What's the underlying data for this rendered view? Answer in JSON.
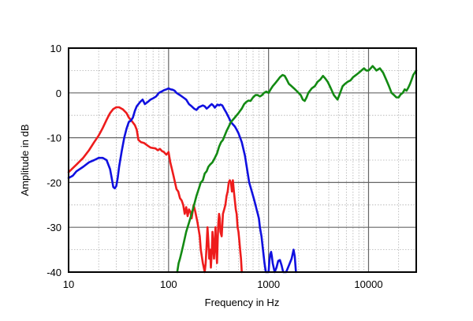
{
  "chart_data": {
    "type": "line",
    "title": "",
    "xlabel": "Frequency in Hz",
    "ylabel": "Amplitude in dB",
    "x_scale": "log",
    "xlim": [
      10,
      30000
    ],
    "ylim": [
      -40,
      10
    ],
    "x_ticks": [
      10,
      100,
      1000,
      10000
    ],
    "x_tick_labels": [
      "10",
      "100",
      "1000",
      "10000"
    ],
    "y_ticks": [
      10,
      0,
      -10,
      -20,
      -30,
      -40
    ],
    "y_tick_labels": [
      "10",
      "0",
      "-10",
      "-20",
      "-30",
      "-40"
    ],
    "grid": true,
    "legend": "none",
    "colors": {
      "red": "#ee1c1c",
      "blue": "#1010e0",
      "green": "#138a13"
    },
    "series": [
      {
        "color": "#ee1c1c",
        "points": [
          [
            10,
            -17.7
          ],
          [
            12,
            -16
          ],
          [
            14,
            -14.5
          ],
          [
            16,
            -12.8
          ],
          [
            18,
            -11
          ],
          [
            20,
            -9.5
          ],
          [
            22,
            -7.8
          ],
          [
            24,
            -6
          ],
          [
            26,
            -4.5
          ],
          [
            28,
            -3.6
          ],
          [
            30,
            -3.2
          ],
          [
            32,
            -3.2
          ],
          [
            35,
            -3.7
          ],
          [
            38,
            -4.5
          ],
          [
            40,
            -5.5
          ],
          [
            43,
            -6.3
          ],
          [
            46,
            -7.2
          ],
          [
            48,
            -8.2
          ],
          [
            50,
            -10.5
          ],
          [
            53,
            -11
          ],
          [
            57,
            -11.2
          ],
          [
            62,
            -11.8
          ],
          [
            66,
            -12.2
          ],
          [
            70,
            -12.3
          ],
          [
            74,
            -12.4
          ],
          [
            78,
            -12.8
          ],
          [
            82,
            -12.5
          ],
          [
            86,
            -13
          ],
          [
            90,
            -13.2
          ],
          [
            95,
            -13.8
          ],
          [
            100,
            -13.2
          ],
          [
            104,
            -15.5
          ],
          [
            108,
            -17
          ],
          [
            112,
            -18.5
          ],
          [
            116,
            -20
          ],
          [
            120,
            -21.5
          ],
          [
            125,
            -22
          ],
          [
            130,
            -23.5
          ],
          [
            135,
            -24
          ],
          [
            140,
            -25
          ],
          [
            145,
            -27
          ],
          [
            150,
            -25.5
          ],
          [
            155,
            -27.5
          ],
          [
            160,
            -26
          ],
          [
            165,
            -26.5
          ],
          [
            170,
            -28
          ],
          [
            178,
            -25
          ],
          [
            185,
            -26.5
          ],
          [
            195,
            -29
          ],
          [
            205,
            -32
          ],
          [
            210,
            -35
          ],
          [
            220,
            -38
          ],
          [
            230,
            -40
          ],
          [
            235,
            -38
          ],
          [
            240,
            -34
          ],
          [
            245,
            -30
          ],
          [
            250,
            -33
          ],
          [
            255,
            -37
          ],
          [
            260,
            -35
          ],
          [
            265,
            -39
          ],
          [
            270,
            -36
          ],
          [
            275,
            -31
          ],
          [
            280,
            -34
          ],
          [
            285,
            -37
          ],
          [
            290,
            -33
          ],
          [
            295,
            -30
          ],
          [
            300,
            -35
          ],
          [
            305,
            -38
          ],
          [
            310,
            -33
          ],
          [
            315,
            -29
          ],
          [
            320,
            -27
          ],
          [
            325,
            -28
          ],
          [
            330,
            -31
          ],
          [
            340,
            -32
          ],
          [
            350,
            -27
          ],
          [
            360,
            -26
          ],
          [
            370,
            -25
          ],
          [
            380,
            -23
          ],
          [
            390,
            -22
          ],
          [
            400,
            -20
          ],
          [
            410,
            -19.5
          ],
          [
            420,
            -20
          ],
          [
            430,
            -22
          ],
          [
            440,
            -19.5
          ],
          [
            450,
            -22
          ],
          [
            460,
            -24
          ],
          [
            470,
            -26
          ],
          [
            480,
            -27
          ],
          [
            490,
            -30
          ],
          [
            500,
            -31
          ],
          [
            510,
            -33
          ],
          [
            520,
            -35
          ],
          [
            530,
            -37
          ],
          [
            540,
            -40
          ]
        ]
      },
      {
        "color": "#1010e0",
        "points": [
          [
            10,
            -19
          ],
          [
            11,
            -18.5
          ],
          [
            12,
            -17.5
          ],
          [
            14,
            -16.5
          ],
          [
            16,
            -15.5
          ],
          [
            18,
            -15
          ],
          [
            20,
            -14.5
          ],
          [
            22,
            -14.5
          ],
          [
            24,
            -15
          ],
          [
            26,
            -17
          ],
          [
            27,
            -19
          ],
          [
            28,
            -21
          ],
          [
            29,
            -21.3
          ],
          [
            30,
            -20.8
          ],
          [
            31,
            -19
          ],
          [
            32,
            -16.5
          ],
          [
            34,
            -13
          ],
          [
            36,
            -10
          ],
          [
            38,
            -8
          ],
          [
            40,
            -6.5
          ],
          [
            42,
            -6.2
          ],
          [
            44,
            -5.5
          ],
          [
            46,
            -4
          ],
          [
            48,
            -3
          ],
          [
            50,
            -2.5
          ],
          [
            52,
            -2
          ],
          [
            55,
            -1.5
          ],
          [
            58,
            -2.5
          ],
          [
            62,
            -2
          ],
          [
            66,
            -1.5
          ],
          [
            70,
            -1.2
          ],
          [
            75,
            -0.8
          ],
          [
            80,
            0
          ],
          [
            85,
            0.3
          ],
          [
            90,
            0.6
          ],
          [
            95,
            0.8
          ],
          [
            100,
            1
          ],
          [
            105,
            0.8
          ],
          [
            110,
            0.7
          ],
          [
            115,
            0.5
          ],
          [
            120,
            0
          ],
          [
            130,
            -0.5
          ],
          [
            140,
            -1
          ],
          [
            150,
            -1.5
          ],
          [
            160,
            -2.5
          ],
          [
            170,
            -3
          ],
          [
            180,
            -3.5
          ],
          [
            190,
            -3.8
          ],
          [
            200,
            -3.2
          ],
          [
            210,
            -3
          ],
          [
            220,
            -2.8
          ],
          [
            230,
            -3
          ],
          [
            240,
            -3.5
          ],
          [
            250,
            -3.2
          ],
          [
            260,
            -2.8
          ],
          [
            270,
            -2.5
          ],
          [
            280,
            -2.8
          ],
          [
            290,
            -3.3
          ],
          [
            300,
            -2.9
          ],
          [
            310,
            -2.6
          ],
          [
            320,
            -2.8
          ],
          [
            330,
            -2.6
          ],
          [
            345,
            -2.8
          ],
          [
            360,
            -3.6
          ],
          [
            380,
            -4.5
          ],
          [
            400,
            -5.5
          ],
          [
            420,
            -6.5
          ],
          [
            440,
            -7
          ],
          [
            460,
            -7.5
          ],
          [
            480,
            -8.2
          ],
          [
            500,
            -9
          ],
          [
            520,
            -10
          ],
          [
            540,
            -11
          ],
          [
            560,
            -12.5
          ],
          [
            580,
            -14
          ],
          [
            600,
            -16
          ],
          [
            620,
            -18
          ],
          [
            640,
            -20
          ],
          [
            660,
            -21
          ],
          [
            680,
            -22
          ],
          [
            700,
            -23
          ],
          [
            720,
            -24
          ],
          [
            740,
            -25
          ],
          [
            760,
            -26
          ],
          [
            780,
            -27
          ],
          [
            800,
            -28
          ],
          [
            820,
            -30
          ],
          [
            850,
            -32
          ],
          [
            880,
            -35
          ],
          [
            910,
            -38
          ],
          [
            940,
            -40
          ],
          [
            1000,
            -40
          ],
          [
            1020,
            -37.5
          ],
          [
            1040,
            -36
          ],
          [
            1060,
            -35.5
          ],
          [
            1080,
            -36.5
          ],
          [
            1100,
            -38
          ],
          [
            1150,
            -40
          ],
          [
            1200,
            -39
          ],
          [
            1250,
            -37.5
          ],
          [
            1300,
            -37.3
          ],
          [
            1350,
            -38.5
          ],
          [
            1400,
            -40
          ],
          [
            1500,
            -40
          ],
          [
            1600,
            -38.5
          ],
          [
            1700,
            -37
          ],
          [
            1780,
            -35
          ],
          [
            1830,
            -36.5
          ],
          [
            1880,
            -40
          ]
        ]
      },
      {
        "color": "#138a13",
        "points": [
          [
            122,
            -40
          ],
          [
            126,
            -38
          ],
          [
            130,
            -37
          ],
          [
            135,
            -35.5
          ],
          [
            140,
            -34
          ],
          [
            145,
            -32.5
          ],
          [
            150,
            -31
          ],
          [
            160,
            -29
          ],
          [
            170,
            -27
          ],
          [
            180,
            -25
          ],
          [
            190,
            -23
          ],
          [
            200,
            -21.5
          ],
          [
            210,
            -20
          ],
          [
            220,
            -19.5
          ],
          [
            230,
            -18
          ],
          [
            240,
            -17.5
          ],
          [
            250,
            -16.5
          ],
          [
            260,
            -16
          ],
          [
            275,
            -15.5
          ],
          [
            290,
            -14.5
          ],
          [
            305,
            -13.5
          ],
          [
            320,
            -12
          ],
          [
            335,
            -11
          ],
          [
            350,
            -10.5
          ],
          [
            365,
            -9.5
          ],
          [
            380,
            -8.5
          ],
          [
            400,
            -7.5
          ],
          [
            420,
            -6.5
          ],
          [
            440,
            -6
          ],
          [
            460,
            -5.5
          ],
          [
            480,
            -5
          ],
          [
            500,
            -4.5
          ],
          [
            520,
            -4
          ],
          [
            540,
            -3.5
          ],
          [
            570,
            -2.5
          ],
          [
            600,
            -2
          ],
          [
            630,
            -1.7
          ],
          [
            660,
            -1.8
          ],
          [
            700,
            -1
          ],
          [
            740,
            -0.5
          ],
          [
            780,
            -0.5
          ],
          [
            820,
            -0.8
          ],
          [
            860,
            -0.5
          ],
          [
            900,
            0
          ],
          [
            950,
            0.3
          ],
          [
            1000,
            0
          ],
          [
            1050,
            0.8
          ],
          [
            1100,
            1.5
          ],
          [
            1150,
            2
          ],
          [
            1200,
            2.5
          ],
          [
            1250,
            3
          ],
          [
            1300,
            3.5
          ],
          [
            1380,
            4
          ],
          [
            1450,
            3.8
          ],
          [
            1520,
            3
          ],
          [
            1600,
            2
          ],
          [
            1700,
            1.5
          ],
          [
            1800,
            1
          ],
          [
            1900,
            0.5
          ],
          [
            2000,
            0
          ],
          [
            2100,
            -0.5
          ],
          [
            2200,
            -1.5
          ],
          [
            2300,
            -1.8
          ],
          [
            2400,
            -1
          ],
          [
            2500,
            0
          ],
          [
            2700,
            1
          ],
          [
            2900,
            1.5
          ],
          [
            3100,
            2.5
          ],
          [
            3300,
            3
          ],
          [
            3500,
            3.8
          ],
          [
            3700,
            3.2
          ],
          [
            3900,
            2.5
          ],
          [
            4100,
            1.5
          ],
          [
            4300,
            0.5
          ],
          [
            4500,
            -0.5
          ],
          [
            4700,
            -1
          ],
          [
            4900,
            -1.5
          ],
          [
            5100,
            -0.5
          ],
          [
            5300,
            0.5
          ],
          [
            5500,
            1.5
          ],
          [
            5800,
            2
          ],
          [
            6200,
            2.5
          ],
          [
            6600,
            2.8
          ],
          [
            7000,
            3.5
          ],
          [
            7500,
            4
          ],
          [
            8000,
            4.5
          ],
          [
            8500,
            5
          ],
          [
            9000,
            5.5
          ],
          [
            9500,
            5
          ],
          [
            10000,
            5
          ],
          [
            10500,
            5.5
          ],
          [
            11000,
            6
          ],
          [
            11500,
            5.5
          ],
          [
            12000,
            5
          ],
          [
            13000,
            5.5
          ],
          [
            14000,
            4.5
          ],
          [
            15000,
            3
          ],
          [
            16000,
            1.5
          ],
          [
            17000,
            0
          ],
          [
            18000,
            -0.5
          ],
          [
            19000,
            -1
          ],
          [
            20000,
            -1
          ],
          [
            21000,
            -0.3
          ],
          [
            22000,
            0
          ],
          [
            23000,
            0.8
          ],
          [
            24000,
            0.5
          ],
          [
            25000,
            1.2
          ],
          [
            26000,
            2
          ],
          [
            27000,
            3
          ],
          [
            28000,
            4
          ],
          [
            29000,
            4.5
          ],
          [
            30000,
            5
          ]
        ]
      }
    ]
  }
}
